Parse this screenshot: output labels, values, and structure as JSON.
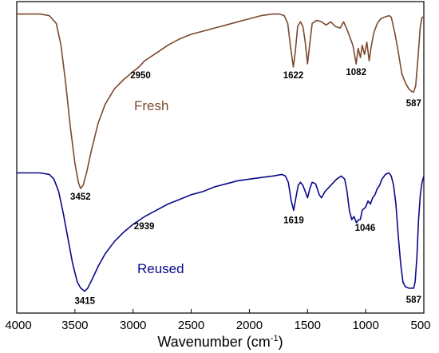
{
  "chart_data": {
    "type": "line",
    "xlabel": "Wavenumber (cm",
    "xlabel_sup": "-1",
    "xlabel_tail": ")",
    "xlim": [
      4000,
      500
    ],
    "x_reversed": true,
    "x_ticks": [
      "4000",
      "3500",
      "3000",
      "2500",
      "2000",
      "1500",
      "1000",
      "500"
    ],
    "grid": false,
    "y_axis_hidden": true,
    "series": [
      {
        "name": "Fresh",
        "color": "#7b4a2e",
        "points": [
          [
            4000,
            0.96
          ],
          [
            3800,
            0.96
          ],
          [
            3720,
            0.955
          ],
          [
            3660,
            0.93
          ],
          [
            3620,
            0.86
          ],
          [
            3580,
            0.74
          ],
          [
            3540,
            0.6
          ],
          [
            3500,
            0.48
          ],
          [
            3470,
            0.42
          ],
          [
            3452,
            0.4
          ],
          [
            3430,
            0.41
          ],
          [
            3400,
            0.45
          ],
          [
            3360,
            0.52
          ],
          [
            3300,
            0.61
          ],
          [
            3240,
            0.67
          ],
          [
            3160,
            0.72
          ],
          [
            3080,
            0.75
          ],
          [
            3000,
            0.775
          ],
          [
            2950,
            0.79
          ],
          [
            2900,
            0.81
          ],
          [
            2800,
            0.835
          ],
          [
            2700,
            0.86
          ],
          [
            2600,
            0.88
          ],
          [
            2500,
            0.895
          ],
          [
            2400,
            0.905
          ],
          [
            2300,
            0.915
          ],
          [
            2200,
            0.925
          ],
          [
            2100,
            0.935
          ],
          [
            2000,
            0.945
          ],
          [
            1900,
            0.955
          ],
          [
            1800,
            0.96
          ],
          [
            1740,
            0.96
          ],
          [
            1700,
            0.955
          ],
          [
            1670,
            0.93
          ],
          [
            1645,
            0.85
          ],
          [
            1622,
            0.79
          ],
          [
            1605,
            0.84
          ],
          [
            1585,
            0.92
          ],
          [
            1560,
            0.935
          ],
          [
            1540,
            0.92
          ],
          [
            1520,
            0.87
          ],
          [
            1500,
            0.8
          ],
          [
            1482,
            0.86
          ],
          [
            1460,
            0.93
          ],
          [
            1420,
            0.94
          ],
          [
            1380,
            0.935
          ],
          [
            1340,
            0.925
          ],
          [
            1300,
            0.935
          ],
          [
            1260,
            0.92
          ],
          [
            1220,
            0.915
          ],
          [
            1190,
            0.935
          ],
          [
            1160,
            0.91
          ],
          [
            1130,
            0.88
          ],
          [
            1110,
            0.86
          ],
          [
            1082,
            0.8
          ],
          [
            1065,
            0.85
          ],
          [
            1045,
            0.82
          ],
          [
            1030,
            0.86
          ],
          [
            1010,
            0.83
          ],
          [
            990,
            0.87
          ],
          [
            970,
            0.81
          ],
          [
            955,
            0.85
          ],
          [
            930,
            0.9
          ],
          [
            900,
            0.93
          ],
          [
            870,
            0.945
          ],
          [
            840,
            0.95
          ],
          [
            800,
            0.955
          ],
          [
            780,
            0.95
          ],
          [
            750,
            0.9
          ],
          [
            720,
            0.84
          ],
          [
            690,
            0.77
          ],
          [
            660,
            0.74
          ],
          [
            630,
            0.72
          ],
          [
            600,
            0.71
          ],
          [
            587,
            0.71
          ],
          [
            570,
            0.73
          ],
          [
            550,
            0.82
          ],
          [
            530,
            0.92
          ],
          [
            515,
            0.95
          ],
          [
            500,
            0.95
          ]
        ]
      },
      {
        "name": "Reused",
        "color": "#0a0a8a",
        "points": [
          [
            4000,
            0.45
          ],
          [
            3800,
            0.45
          ],
          [
            3720,
            0.445
          ],
          [
            3680,
            0.43
          ],
          [
            3640,
            0.39
          ],
          [
            3600,
            0.32
          ],
          [
            3560,
            0.24
          ],
          [
            3520,
            0.16
          ],
          [
            3480,
            0.1
          ],
          [
            3450,
            0.08
          ],
          [
            3415,
            0.07
          ],
          [
            3390,
            0.08
          ],
          [
            3350,
            0.11
          ],
          [
            3300,
            0.15
          ],
          [
            3240,
            0.19
          ],
          [
            3160,
            0.23
          ],
          [
            3080,
            0.26
          ],
          [
            3000,
            0.285
          ],
          [
            2939,
            0.3
          ],
          [
            2900,
            0.31
          ],
          [
            2800,
            0.33
          ],
          [
            2700,
            0.35
          ],
          [
            2600,
            0.365
          ],
          [
            2500,
            0.38
          ],
          [
            2400,
            0.39
          ],
          [
            2300,
            0.405
          ],
          [
            2200,
            0.415
          ],
          [
            2100,
            0.425
          ],
          [
            2000,
            0.43
          ],
          [
            1900,
            0.435
          ],
          [
            1800,
            0.44
          ],
          [
            1720,
            0.445
          ],
          [
            1690,
            0.44
          ],
          [
            1665,
            0.42
          ],
          [
            1640,
            0.36
          ],
          [
            1619,
            0.33
          ],
          [
            1600,
            0.37
          ],
          [
            1580,
            0.41
          ],
          [
            1560,
            0.42
          ],
          [
            1540,
            0.41
          ],
          [
            1520,
            0.39
          ],
          [
            1500,
            0.37
          ],
          [
            1480,
            0.4
          ],
          [
            1460,
            0.42
          ],
          [
            1430,
            0.415
          ],
          [
            1400,
            0.38
          ],
          [
            1380,
            0.37
          ],
          [
            1350,
            0.39
          ],
          [
            1300,
            0.41
          ],
          [
            1250,
            0.43
          ],
          [
            1210,
            0.44
          ],
          [
            1180,
            0.43
          ],
          [
            1160,
            0.39
          ],
          [
            1140,
            0.33
          ],
          [
            1120,
            0.3
          ],
          [
            1100,
            0.31
          ],
          [
            1080,
            0.29
          ],
          [
            1060,
            0.3
          ],
          [
            1046,
            0.3
          ],
          [
            1030,
            0.33
          ],
          [
            1000,
            0.34
          ],
          [
            980,
            0.36
          ],
          [
            960,
            0.35
          ],
          [
            940,
            0.37
          ],
          [
            920,
            0.38
          ],
          [
            900,
            0.4
          ],
          [
            880,
            0.41
          ],
          [
            860,
            0.43
          ],
          [
            830,
            0.445
          ],
          [
            800,
            0.45
          ],
          [
            780,
            0.44
          ],
          [
            760,
            0.41
          ],
          [
            740,
            0.35
          ],
          [
            720,
            0.25
          ],
          [
            700,
            0.16
          ],
          [
            680,
            0.1
          ],
          [
            660,
            0.085
          ],
          [
            630,
            0.08
          ],
          [
            600,
            0.08
          ],
          [
            587,
            0.08
          ],
          [
            575,
            0.1
          ],
          [
            560,
            0.18
          ],
          [
            545,
            0.3
          ],
          [
            530,
            0.38
          ],
          [
            515,
            0.42
          ],
          [
            500,
            0.44
          ]
        ]
      }
    ],
    "annotations": [
      {
        "text": "3452",
        "x": 3452,
        "series": 0
      },
      {
        "text": "2950",
        "x": 2950,
        "series": 0
      },
      {
        "text": "1622",
        "x": 1622,
        "series": 0
      },
      {
        "text": "1082",
        "x": 1082,
        "series": 0
      },
      {
        "text": "587",
        "x": 587,
        "series": 0
      },
      {
        "text": "3415",
        "x": 3415,
        "series": 1
      },
      {
        "text": "2939",
        "x": 2939,
        "series": 1
      },
      {
        "text": "1619",
        "x": 1619,
        "series": 1
      },
      {
        "text": "1046",
        "x": 1046,
        "series": 1
      },
      {
        "text": "587",
        "x": 587,
        "series": 1
      }
    ]
  }
}
